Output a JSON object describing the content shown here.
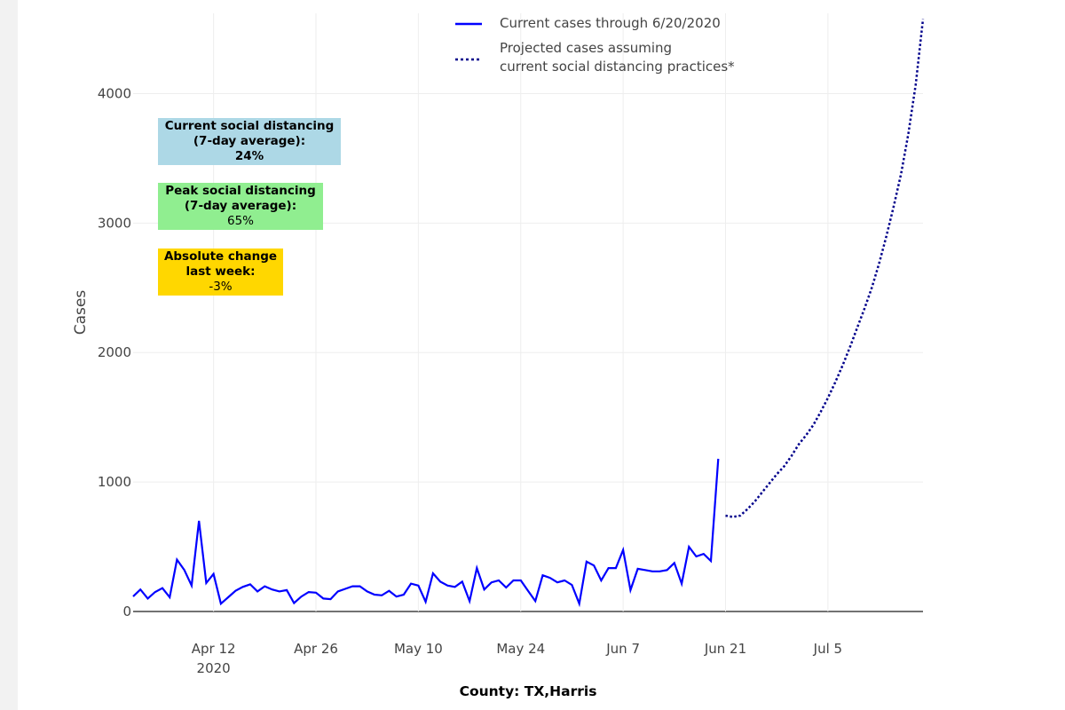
{
  "chart_data": {
    "type": "line",
    "xlabel": "County: TX,Harris",
    "ylabel": "Cases",
    "xlim": [
      "2020-04-01",
      "2020-07-18"
    ],
    "xticks": [
      {
        "value": "2020-04-12",
        "label": "Apr 12"
      },
      {
        "value": "2020-04-26",
        "label": "Apr 26"
      },
      {
        "value": "2020-05-10",
        "label": "May 10"
      },
      {
        "value": "2020-05-24",
        "label": "May 24"
      },
      {
        "value": "2020-06-07",
        "label": "Jun 7"
      },
      {
        "value": "2020-06-21",
        "label": "Jun 21"
      },
      {
        "value": "2020-07-05",
        "label": "Jul 5"
      }
    ],
    "x_year_label": "2020",
    "ylim": [
      0,
      4620
    ],
    "yticks": [
      0,
      1000,
      2000,
      3000,
      4000
    ],
    "grid": true,
    "series": [
      {
        "name": "Current cases through 6/20/2020",
        "color": "#0000ff",
        "dash": "solid",
        "x": [
          "2020-04-01",
          "2020-04-02",
          "2020-04-03",
          "2020-04-04",
          "2020-04-05",
          "2020-04-06",
          "2020-04-07",
          "2020-04-08",
          "2020-04-09",
          "2020-04-10",
          "2020-04-11",
          "2020-04-12",
          "2020-04-13",
          "2020-04-14",
          "2020-04-15",
          "2020-04-16",
          "2020-04-17",
          "2020-04-18",
          "2020-04-19",
          "2020-04-20",
          "2020-04-21",
          "2020-04-22",
          "2020-04-23",
          "2020-04-24",
          "2020-04-25",
          "2020-04-26",
          "2020-04-27",
          "2020-04-28",
          "2020-04-29",
          "2020-04-30",
          "2020-05-01",
          "2020-05-02",
          "2020-05-03",
          "2020-05-04",
          "2020-05-05",
          "2020-05-06",
          "2020-05-07",
          "2020-05-08",
          "2020-05-09",
          "2020-05-10",
          "2020-05-11",
          "2020-05-12",
          "2020-05-13",
          "2020-05-14",
          "2020-05-15",
          "2020-05-16",
          "2020-05-17",
          "2020-05-18",
          "2020-05-19",
          "2020-05-20",
          "2020-05-21",
          "2020-05-22",
          "2020-05-23",
          "2020-05-24",
          "2020-05-25",
          "2020-05-26",
          "2020-05-27",
          "2020-05-28",
          "2020-05-29",
          "2020-05-30",
          "2020-05-31",
          "2020-06-01",
          "2020-06-02",
          "2020-06-03",
          "2020-06-04",
          "2020-06-05",
          "2020-06-06",
          "2020-06-07",
          "2020-06-08",
          "2020-06-09",
          "2020-06-10",
          "2020-06-11",
          "2020-06-12",
          "2020-06-13",
          "2020-06-14",
          "2020-06-15",
          "2020-06-16",
          "2020-06-17",
          "2020-06-18",
          "2020-06-19",
          "2020-06-20"
        ],
        "values": [
          116,
          170,
          100,
          150,
          180,
          110,
          400,
          320,
          200,
          700,
          220,
          290,
          60,
          110,
          160,
          190,
          210,
          155,
          195,
          170,
          155,
          165,
          65,
          115,
          150,
          145,
          100,
          95,
          155,
          175,
          195,
          195,
          155,
          130,
          125,
          160,
          115,
          130,
          215,
          200,
          75,
          295,
          230,
          200,
          190,
          230,
          80,
          335,
          170,
          225,
          240,
          185,
          240,
          240,
          160,
          80,
          280,
          260,
          225,
          240,
          205,
          60,
          385,
          355,
          240,
          335,
          335,
          475,
          165,
          330,
          320,
          310,
          310,
          320,
          375,
          215,
          500,
          425,
          445,
          390,
          1180
        ]
      },
      {
        "name": "Projected cases assuming\ncurrent social distancing practices*",
        "color": "#00008b",
        "dash": "dot",
        "x": [
          "2020-06-21",
          "2020-06-22",
          "2020-06-23",
          "2020-06-24",
          "2020-06-25",
          "2020-06-26",
          "2020-06-27",
          "2020-06-28",
          "2020-06-29",
          "2020-06-30",
          "2020-07-01",
          "2020-07-02",
          "2020-07-03",
          "2020-07-04",
          "2020-07-05",
          "2020-07-06",
          "2020-07-07",
          "2020-07-08",
          "2020-07-09",
          "2020-07-10",
          "2020-07-11",
          "2020-07-12",
          "2020-07-13",
          "2020-07-14",
          "2020-07-15",
          "2020-07-16",
          "2020-07-17",
          "2020-07-18"
        ],
        "values": [
          740,
          730,
          740,
          790,
          850,
          920,
          990,
          1060,
          1120,
          1200,
          1290,
          1360,
          1440,
          1540,
          1650,
          1770,
          1900,
          2040,
          2190,
          2340,
          2500,
          2690,
          2900,
          3130,
          3380,
          3690,
          4070,
          4575
        ]
      }
    ],
    "annotations": [
      {
        "title": "Current social distancing\n(7-day average):",
        "value": "24%",
        "color": "#add8e6",
        "value_bold": true
      },
      {
        "title": "Peak social distancing\n(7-day average):",
        "value": "65%",
        "color": "#90ee90",
        "value_bold": false
      },
      {
        "title": "Absolute change\nlast week:",
        "value": "-3%",
        "color": "#ffd700",
        "value_bold": false
      }
    ]
  }
}
